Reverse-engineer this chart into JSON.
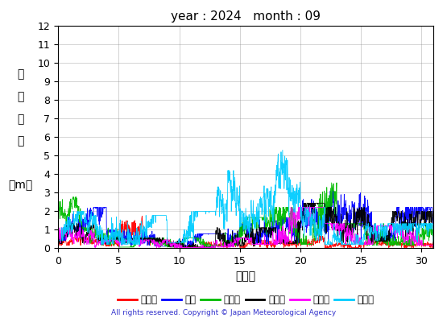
{
  "title": "year : 2024   month : 09",
  "xlabel": "（日）",
  "ylabel_chars": [
    "有",
    "義",
    "波",
    "高",
    "",
    "（m）"
  ],
  "xlim": [
    0,
    31
  ],
  "ylim": [
    0,
    12
  ],
  "yticks": [
    0,
    1,
    2,
    3,
    4,
    5,
    6,
    7,
    8,
    9,
    10,
    11,
    12
  ],
  "xticks": [
    0,
    5,
    10,
    15,
    20,
    25,
    30
  ],
  "copyright": "All rights reserved. Copyright © Japan Meteorological Agency",
  "legend": [
    {
      "label": "上ノ国",
      "color": "#ff0000"
    },
    {
      "label": "唐桑",
      "color": "#0000ff"
    },
    {
      "label": "石廀崎",
      "color": "#00bb00"
    },
    {
      "label": "経ヶ峬",
      "color": "#000000"
    },
    {
      "label": "生月島",
      "color": "#ff00ff"
    },
    {
      "label": "屋久島",
      "color": "#00ccff"
    }
  ],
  "series_params": {
    "上ノ国": {
      "color": "#ff0000",
      "segments": [
        [
          0,
          2,
          0.3,
          0.5,
          0.15
        ],
        [
          2,
          5,
          0.2,
          0.5,
          0.1
        ],
        [
          5,
          7,
          0.3,
          1.7,
          0.25
        ],
        [
          7,
          12,
          0.1,
          0.4,
          0.1
        ],
        [
          12,
          15,
          0.05,
          0.3,
          0.08
        ],
        [
          15,
          18,
          0.05,
          0.5,
          0.1
        ],
        [
          18,
          22,
          0.05,
          0.6,
          0.1
        ],
        [
          22,
          31,
          0.05,
          0.3,
          0.08
        ]
      ]
    },
    "唐桑": {
      "color": "#0000ff",
      "segments": [
        [
          0,
          4,
          0.8,
          2.0,
          0.3
        ],
        [
          4,
          8,
          0.3,
          0.9,
          0.2
        ],
        [
          8,
          14,
          0.2,
          0.7,
          0.15
        ],
        [
          14,
          16,
          0.3,
          1.2,
          0.25
        ],
        [
          16,
          20,
          0.4,
          1.5,
          0.3
        ],
        [
          20,
          22,
          0.8,
          2.4,
          0.4
        ],
        [
          22,
          26,
          0.8,
          2.8,
          0.5
        ],
        [
          26,
          31,
          0.8,
          2.0,
          0.4
        ]
      ]
    },
    "石廀崎": {
      "color": "#00bb00",
      "segments": [
        [
          0,
          2,
          1.5,
          2.5,
          0.3
        ],
        [
          2,
          5,
          0.3,
          1.0,
          0.2
        ],
        [
          5,
          13,
          0.1,
          0.5,
          0.12
        ],
        [
          13,
          17,
          0.3,
          1.5,
          0.3
        ],
        [
          17,
          21,
          0.4,
          2.0,
          0.4
        ],
        [
          21,
          23,
          0.8,
          3.2,
          0.5
        ],
        [
          23,
          31,
          0.3,
          1.2,
          0.25
        ]
      ]
    },
    "経ヶ峬": {
      "color": "#000000",
      "segments": [
        [
          0,
          3,
          0.5,
          1.2,
          0.2
        ],
        [
          3,
          13,
          0.1,
          0.5,
          0.1
        ],
        [
          13,
          18,
          0.2,
          1.0,
          0.2
        ],
        [
          18,
          22,
          0.5,
          2.2,
          0.4
        ],
        [
          22,
          26,
          0.6,
          2.0,
          0.4
        ],
        [
          26,
          31,
          0.7,
          1.8,
          0.35
        ]
      ]
    },
    "生月島": {
      "color": "#ff00ff",
      "segments": [
        [
          0,
          3,
          0.4,
          1.0,
          0.2
        ],
        [
          3,
          13,
          0.05,
          0.4,
          0.1
        ],
        [
          13,
          16,
          0.1,
          0.5,
          0.12
        ],
        [
          16,
          22,
          0.4,
          2.0,
          0.4
        ],
        [
          22,
          26,
          0.4,
          1.2,
          0.25
        ],
        [
          26,
          31,
          0.3,
          1.1,
          0.22
        ]
      ]
    },
    "屋久島": {
      "color": "#00ccff",
      "segments": [
        [
          0,
          3,
          0.8,
          1.8,
          0.3
        ],
        [
          3,
          9,
          0.4,
          1.6,
          0.3
        ],
        [
          9,
          13,
          0.6,
          1.8,
          0.35
        ],
        [
          13,
          14,
          1.5,
          3.0,
          0.5
        ],
        [
          14,
          15,
          2.5,
          3.8,
          0.6
        ],
        [
          15,
          17,
          1.0,
          2.5,
          0.4
        ],
        [
          17,
          18,
          1.5,
          3.5,
          0.5
        ],
        [
          18,
          19,
          3.5,
          5.0,
          0.6
        ],
        [
          19,
          20,
          2.0,
          3.5,
          0.5
        ],
        [
          20,
          22,
          0.8,
          2.0,
          0.35
        ],
        [
          22,
          31,
          0.4,
          1.2,
          0.25
        ]
      ]
    }
  }
}
